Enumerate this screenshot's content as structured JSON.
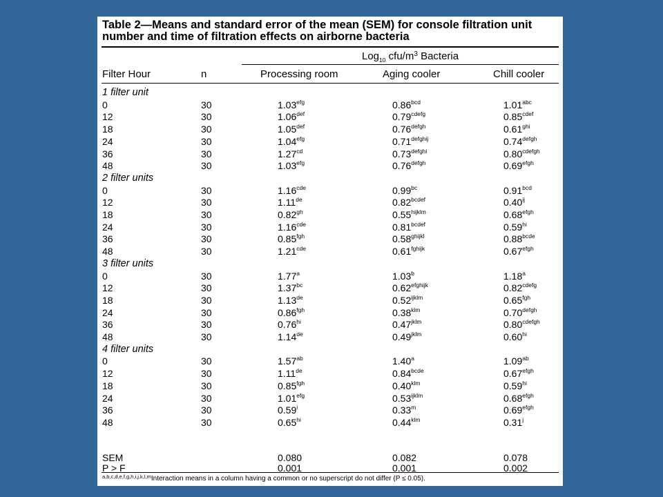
{
  "title": "Table 2—Means and standard error of the mean (SEM) for console filtration unit number and time of filtration effects on airborne bacteria",
  "header": {
    "group_prefix": "Log",
    "group_sub": "10",
    "group_mid": " cfu/m",
    "group_sup": "3",
    "group_suffix": " Bacteria",
    "columns": [
      "Filter Hour",
      "n",
      "Processing room",
      "Aging cooler",
      "Chill cooler"
    ]
  },
  "groups": [
    {
      "label": "1 filter unit",
      "rows": [
        {
          "hour": "0",
          "n": "30",
          "proc": "1.03",
          "proc_sup": "efg",
          "aging": "0.86",
          "aging_sup": "bcd",
          "chill": "1.01",
          "chill_sup": "abc"
        },
        {
          "hour": "12",
          "n": "30",
          "proc": "1.06",
          "proc_sup": "def",
          "aging": "0.79",
          "aging_sup": "cdefg",
          "chill": "0.85",
          "chill_sup": "cdef"
        },
        {
          "hour": "18",
          "n": "30",
          "proc": "1.05",
          "proc_sup": "def",
          "aging": "0.76",
          "aging_sup": "defgh",
          "chill": "0.61",
          "chill_sup": "ghi"
        },
        {
          "hour": "24",
          "n": "30",
          "proc": "1.04",
          "proc_sup": "efg",
          "aging": "0.71",
          "aging_sup": "defghij",
          "chill": "0.74",
          "chill_sup": "defgh"
        },
        {
          "hour": "36",
          "n": "30",
          "proc": "1.27",
          "proc_sup": "cd",
          "aging": "0.73",
          "aging_sup": "defghi",
          "chill": "0.80",
          "chill_sup": "cdefgh"
        },
        {
          "hour": "48",
          "n": "30",
          "proc": "1.03",
          "proc_sup": "efg",
          "aging": "0.76",
          "aging_sup": "defgh",
          "chill": "0.69",
          "chill_sup": "efgh"
        }
      ]
    },
    {
      "label": "2 filter units",
      "rows": [
        {
          "hour": "0",
          "n": "30",
          "proc": "1.16",
          "proc_sup": "cde",
          "aging": "0.99",
          "aging_sup": "bc",
          "chill": "0.91",
          "chill_sup": "bcd"
        },
        {
          "hour": "12",
          "n": "30",
          "proc": "1.11",
          "proc_sup": "de",
          "aging": "0.82",
          "aging_sup": "bcdef",
          "chill": "0.40",
          "chill_sup": "ij"
        },
        {
          "hour": "18",
          "n": "30",
          "proc": "0.82",
          "proc_sup": "gh",
          "aging": "0.55",
          "aging_sup": "hijklm",
          "chill": "0.68",
          "chill_sup": "efgh"
        },
        {
          "hour": "24",
          "n": "30",
          "proc": "1.16",
          "proc_sup": "cde",
          "aging": "0.81",
          "aging_sup": "bcdef",
          "chill": "0.59",
          "chill_sup": "hi"
        },
        {
          "hour": "36",
          "n": "30",
          "proc": "0.85",
          "proc_sup": "fgh",
          "aging": "0.58",
          "aging_sup": "ghijkl",
          "chill": "0.88",
          "chill_sup": "bcde"
        },
        {
          "hour": "48",
          "n": "30",
          "proc": "1.21",
          "proc_sup": "cde",
          "aging": "0.61",
          "aging_sup": "fghijk",
          "chill": "0.67",
          "chill_sup": "efgh"
        }
      ]
    },
    {
      "label": "3 filter units",
      "rows": [
        {
          "hour": "0",
          "n": "30",
          "proc": "1.77",
          "proc_sup": "a",
          "aging": "1.03",
          "aging_sup": "b",
          "chill": "1.18",
          "chill_sup": "a"
        },
        {
          "hour": "12",
          "n": "30",
          "proc": "1.37",
          "proc_sup": "bc",
          "aging": "0.62",
          "aging_sup": "efghijk",
          "chill": "0.82",
          "chill_sup": "cdefg"
        },
        {
          "hour": "18",
          "n": "30",
          "proc": "1.13",
          "proc_sup": "de",
          "aging": "0.52",
          "aging_sup": "ijklm",
          "chill": "0.65",
          "chill_sup": "fgh"
        },
        {
          "hour": "24",
          "n": "30",
          "proc": "0.86",
          "proc_sup": "fgh",
          "aging": "0.38",
          "aging_sup": "klm",
          "chill": "0.70",
          "chill_sup": "defgh"
        },
        {
          "hour": "36",
          "n": "30",
          "proc": "0.76",
          "proc_sup": "hi",
          "aging": "0.47",
          "aging_sup": "jklm",
          "chill": "0.80",
          "chill_sup": "cdefgh"
        },
        {
          "hour": "48",
          "n": "30",
          "proc": "1.14",
          "proc_sup": "de",
          "aging": "0.49",
          "aging_sup": "jklm",
          "chill": "0.60",
          "chill_sup": "hi"
        }
      ]
    },
    {
      "label": "4 filter units",
      "rows": [
        {
          "hour": "0",
          "n": "30",
          "proc": "1.57",
          "proc_sup": "ab",
          "aging": "1.40",
          "aging_sup": "a",
          "chill": "1.09",
          "chill_sup": "ab"
        },
        {
          "hour": "12",
          "n": "30",
          "proc": "1.11",
          "proc_sup": "de",
          "aging": "0.84",
          "aging_sup": "bcde",
          "chill": "0.67",
          "chill_sup": "efgh"
        },
        {
          "hour": "18",
          "n": "30",
          "proc": "0.85",
          "proc_sup": "fgh",
          "aging": "0.40",
          "aging_sup": "klm",
          "chill": "0.59",
          "chill_sup": "hi"
        },
        {
          "hour": "24",
          "n": "30",
          "proc": "1.01",
          "proc_sup": "efg",
          "aging": "0.53",
          "aging_sup": "ijklm",
          "chill": "0.68",
          "chill_sup": "efgh"
        },
        {
          "hour": "36",
          "n": "30",
          "proc": "0.59",
          "proc_sup": "i",
          "aging": "0.33",
          "aging_sup": "m",
          "chill": "0.69",
          "chill_sup": "efgh"
        },
        {
          "hour": "48",
          "n": "30",
          "proc": "0.65",
          "proc_sup": "hi",
          "aging": "0.44",
          "aging_sup": "klm",
          "chill": "0.31",
          "chill_sup": "j"
        }
      ]
    }
  ],
  "summary": [
    {
      "label": "SEM",
      "proc": "0.080",
      "aging": "0.082",
      "chill": "0.078"
    },
    {
      "label": "P > F",
      "proc": "0.001",
      "aging": "0.001",
      "chill": "0.002"
    }
  ],
  "footnote": {
    "letters": "a,b,c,d,e,f,g,h,i,j,k,l,m",
    "text": "Interaction means in a column having a common or no superscript do not differ (P ≤ 0.05)."
  },
  "colors": {
    "background": "#336699",
    "page": "#ffffff"
  }
}
